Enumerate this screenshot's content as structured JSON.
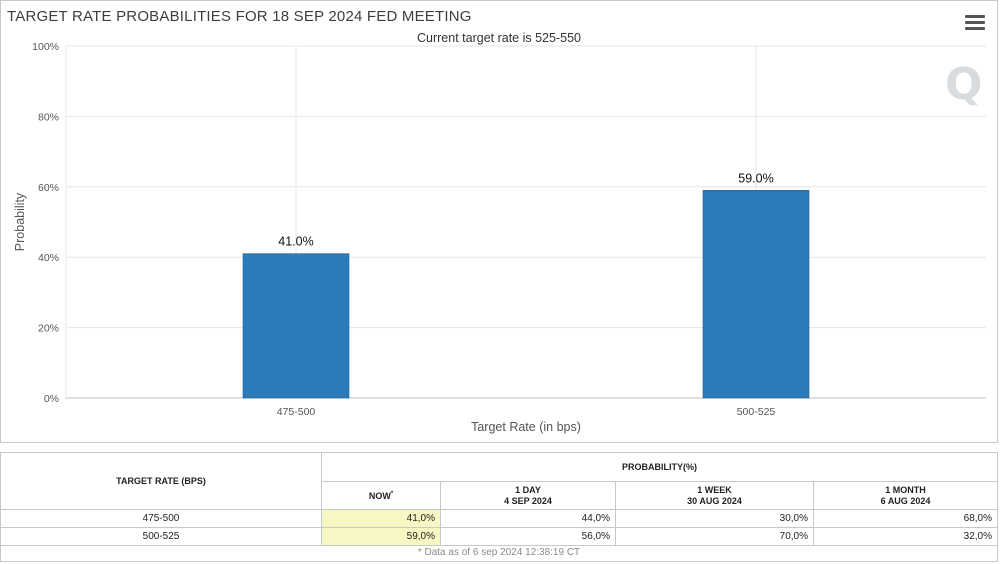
{
  "chart_data": {
    "type": "bar",
    "title": "TARGET RATE PROBABILITIES FOR 18 SEP 2024 FED MEETING",
    "subtitle": "Current target rate is 525-550",
    "categories": [
      "475-500",
      "500-525"
    ],
    "values": [
      41.0,
      59.0
    ],
    "data_labels": [
      "41.0%",
      "59.0%"
    ],
    "xlabel": "Target Rate (in bps)",
    "ylabel": "Probability",
    "ylim": [
      0,
      100
    ],
    "yticks": [
      0,
      20,
      40,
      60,
      80,
      100
    ],
    "ytick_labels": [
      "0%",
      "20%",
      "40%",
      "60%",
      "80%",
      "100%"
    ],
    "bar_color": "#2b7bba",
    "grid": true,
    "legend": "none"
  },
  "watermark": "Q",
  "table": {
    "header_target": "TARGET RATE (BPS)",
    "header_probability": "PROBABILITY(%)",
    "columns": [
      {
        "line1": "NOW",
        "line2": "",
        "marker": "*"
      },
      {
        "line1": "1 DAY",
        "line2": "4 SEP 2024"
      },
      {
        "line1": "1 WEEK",
        "line2": "30 AUG 2024"
      },
      {
        "line1": "1 MONTH",
        "line2": "6 AUG 2024"
      }
    ],
    "rows": [
      {
        "rate": "475-500",
        "now": "41,0%",
        "day": "44,0%",
        "week": "30,0%",
        "month": "68,0%"
      },
      {
        "rate": "500-525",
        "now": "59,0%",
        "day": "56,0%",
        "week": "70,0%",
        "month": "32,0%"
      }
    ],
    "footnote": "* Data as of 6 sep 2024 12:38:19 CT"
  }
}
